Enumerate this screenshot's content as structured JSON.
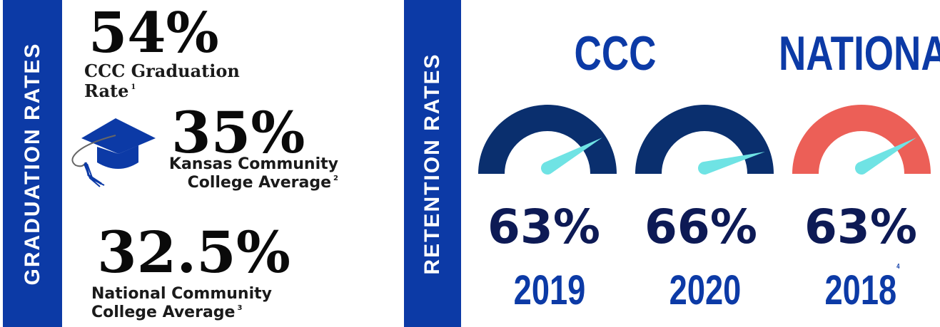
{
  "graduation": {
    "band_label": "GRADUATION RATES",
    "ccc": {
      "value": "54%",
      "caption_line1": "CCC Graduation",
      "caption_line2": "Rate",
      "ref": "1"
    },
    "kansas": {
      "value": "35%",
      "caption_line1": "Kansas Community",
      "caption_line2": "College Average",
      "ref": "2"
    },
    "national": {
      "value": "32.5%",
      "caption_line1": "National Community",
      "caption_line2": "College Average",
      "ref": "3"
    },
    "icon": "graduation-cap-icon"
  },
  "retention": {
    "band_label": "RETENTION RATES",
    "headings": {
      "ccc": "CCC",
      "national": "NATIONAL"
    },
    "gauges": [
      {
        "value": "63%",
        "year": "2019",
        "ref": "",
        "fraction": 0.63,
        "color": "#0a2f6e"
      },
      {
        "value": "66%",
        "year": "2020",
        "ref": "",
        "fraction": 0.66,
        "color": "#0a2f6e"
      },
      {
        "value": "63%",
        "year": "2018",
        "ref": "4",
        "fraction": 0.63,
        "color": "#ec5f57"
      }
    ],
    "needle_color": "#6fe3e4"
  },
  "colors": {
    "band": "#0c3aa6",
    "text_dark": "#0d1a55",
    "accent_blue": "#0c3aa6"
  }
}
